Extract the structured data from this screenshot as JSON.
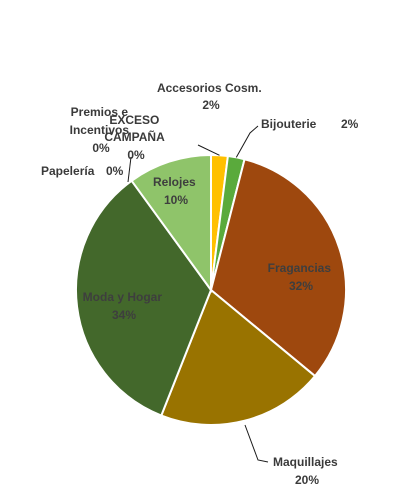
{
  "chart_data": {
    "type": "pie",
    "title": "",
    "slices": [
      {
        "label": "Accesorios Cosm.",
        "value": 2,
        "pct_label": "2%",
        "color": "#ffc000"
      },
      {
        "label": "Bijouterie",
        "value": 2,
        "pct_label": "2%",
        "color": "#5aaa3c"
      },
      {
        "label": "Fragancias",
        "value": 32,
        "pct_label": "32%",
        "color": "#9e480e"
      },
      {
        "label": "Maquillajes",
        "value": 20,
        "pct_label": "20%",
        "color": "#997300"
      },
      {
        "label": "Moda y Hogar",
        "value": 34,
        "pct_label": "34%",
        "color": "#43682b"
      },
      {
        "label": "Papelería",
        "value": 0,
        "pct_label": "0%",
        "color": "#264478"
      },
      {
        "label": "Premios e Incentivos",
        "value": 0,
        "pct_label": "0%",
        "color": "#a5a5a5"
      },
      {
        "label": "EXCESO CAMPAÑA",
        "value": 0,
        "pct_label": "0%",
        "color": "#70ad47"
      },
      {
        "label": "Relojes",
        "value": 10,
        "pct_label": "10%",
        "color": "#8fc46a"
      }
    ],
    "legend": "none"
  }
}
